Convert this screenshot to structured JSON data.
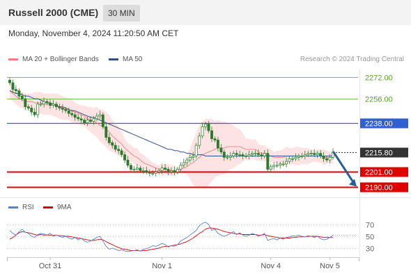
{
  "header": {
    "title": "Russell 2000 (CME)",
    "timeframe": "30 MIN",
    "datetime": "Monday, November 4, 2024 11:20:50 AM CET"
  },
  "legend": {
    "bollinger_label": "MA 20 + Bollinger Bands",
    "ma50_label": "MA 50",
    "credit": "Research © 2024 Trading Central",
    "rsi_label": "RSI",
    "rsi_ma_label": "9MA"
  },
  "colors": {
    "bollinger": "#f08080",
    "band_fill": "#fde3e3",
    "ma50": "#2d4e8a",
    "green_level": "#5aa02c",
    "blue_level": "#2f5fd0",
    "red_level": "#e00000",
    "current": "#333333",
    "candle": "#2c7a2c",
    "arrow": "#2a5c9a",
    "rsi": "#5b7fd6",
    "rsi_ma": "#e00000"
  },
  "chart_data": [
    {
      "type": "candlestick",
      "ylim": [
        2184,
        2278
      ],
      "levels": [
        {
          "value": 2272.0,
          "label": "2272.00",
          "kind": "green"
        },
        {
          "value": 2256.0,
          "label": "2256.00",
          "kind": "green"
        },
        {
          "value": 2238.0,
          "label": "2238.00",
          "kind": "blue"
        },
        {
          "value": 2215.8,
          "label": "2215.80",
          "kind": "current"
        },
        {
          "value": 2201.0,
          "label": "2201.00",
          "kind": "red"
        },
        {
          "value": 2190.0,
          "label": "2190.00",
          "kind": "red"
        }
      ],
      "close": [
        2268,
        2263,
        2262,
        2258,
        2256,
        2250,
        2249,
        2246,
        2244,
        2252,
        2252,
        2254,
        2253,
        2251,
        2252,
        2250,
        2249,
        2248,
        2247,
        2245,
        2244,
        2242,
        2241,
        2240,
        2238,
        2240,
        2239,
        2241,
        2243,
        2244,
        2235,
        2227,
        2223,
        2221,
        2218,
        2217,
        2214,
        2210,
        2206,
        2203,
        2203,
        2204,
        2202,
        2202,
        2201,
        2200,
        2200,
        2201,
        2202,
        2204,
        2203,
        2201,
        2202,
        2201,
        2203,
        2206,
        2208,
        2210,
        2212,
        2213,
        2221,
        2228,
        2235,
        2237,
        2232,
        2226,
        2225,
        2219,
        2216,
        2212,
        2212,
        2213,
        2215,
        2214,
        2214,
        2213,
        2213,
        2214,
        2215,
        2215,
        2214,
        2213,
        2215,
        2203,
        2205,
        2206,
        2206,
        2207,
        2207,
        2209,
        2211,
        2211,
        2212,
        2213,
        2213,
        2214,
        2215,
        2215,
        2214,
        2215,
        2213,
        2211,
        2210,
        2212,
        2215.8
      ],
      "upper_band": [
        2268,
        2266,
        2264,
        2262,
        2261,
        2260,
        2260,
        2260,
        2261,
        2261,
        2261,
        2260,
        2260,
        2260,
        2260,
        2260,
        2259,
        2258,
        2257,
        2256,
        2256,
        2253,
        2252,
        2251,
        2251,
        2250,
        2250,
        2249,
        2250,
        2248,
        2248,
        2246,
        2244,
        2240,
        2237,
        2235,
        2231,
        2226,
        2223,
        2221,
        2219,
        2219,
        2215,
        2214,
        2212,
        2210,
        2208,
        2207,
        2206,
        2208,
        2207,
        2207,
        2206,
        2206,
        2204,
        2206,
        2208,
        2212,
        2219,
        2225,
        2230,
        2236,
        2239,
        2241,
        2241,
        2241,
        2239,
        2240,
        2239,
        2239,
        2238,
        2237,
        2236,
        2234,
        2233,
        2230,
        2226,
        2226,
        2225,
        2226,
        2222,
        2221,
        2221,
        2219,
        2218,
        2216,
        2217,
        2217,
        2218,
        2220,
        2219,
        2219,
        2220,
        2220,
        2219,
        2219,
        2219,
        2218,
        2217,
        2218,
        2218,
        2218,
        2217,
        2216,
        2217
      ],
      "ma20": [
        2262,
        2260,
        2258,
        2256,
        2255,
        2254,
        2254,
        2254,
        2253,
        2253,
        2253,
        2252,
        2252,
        2252,
        2251,
        2251,
        2250,
        2249,
        2248,
        2248,
        2247,
        2246,
        2245,
        2244,
        2243,
        2241,
        2240,
        2239,
        2238,
        2236,
        2235,
        2233,
        2231,
        2228,
        2226,
        2224,
        2222,
        2219,
        2217,
        2215,
        2213,
        2212,
        2210,
        2208,
        2207,
        2206,
        2205,
        2204,
        2203,
        2203,
        2203,
        2203,
        2202,
        2202,
        2202,
        2203,
        2204,
        2205,
        2207,
        2208,
        2210,
        2212,
        2214,
        2215,
        2216,
        2217,
        2218,
        2219,
        2219,
        2219,
        2220,
        2220,
        2220,
        2220,
        2220,
        2219,
        2218,
        2218,
        2218,
        2218,
        2216,
        2215,
        2215,
        2214,
        2213,
        2212,
        2212,
        2212,
        2212,
        2213,
        2213,
        2213,
        2213,
        2213,
        2213,
        2213,
        2213,
        2213,
        2213,
        2213,
        2213,
        2212,
        2212,
        2212,
        2212
      ],
      "lower_band": [
        2256,
        2254,
        2252,
        2250,
        2249,
        2248,
        2248,
        2248,
        2246,
        2245,
        2245,
        2244,
        2244,
        2244,
        2243,
        2242,
        2241,
        2240,
        2240,
        2240,
        2238,
        2238,
        2237,
        2236,
        2236,
        2233,
        2231,
        2229,
        2227,
        2224,
        2222,
        2220,
        2217,
        2216,
        2215,
        2213,
        2212,
        2212,
        2211,
        2209,
        2207,
        2205,
        2205,
        2203,
        2202,
        2202,
        2201,
        2201,
        2200,
        2198,
        2199,
        2199,
        2198,
        2198,
        2200,
        2200,
        2200,
        2199,
        2196,
        2191,
        2190,
        2189,
        2189,
        2189,
        2191,
        2194,
        2197,
        2198,
        2199,
        2199,
        2202,
        2203,
        2204,
        2206,
        2207,
        2209,
        2210,
        2210,
        2211,
        2210,
        2210,
        2209,
        2209,
        2209,
        2208,
        2208,
        2207,
        2207,
        2206,
        2206,
        2207,
        2207,
        2206,
        2206,
        2207,
        2207,
        2207,
        2208,
        2209,
        2208,
        2208,
        2206,
        2207,
        2208,
        2207
      ],
      "ma50": [
        2262,
        2261,
        2260,
        2260,
        2259,
        2258,
        2258,
        2257,
        2256,
        2256,
        2255,
        2254,
        2253,
        2253,
        2252,
        2251,
        2250,
        2250,
        2249,
        2248,
        2247,
        2247,
        2246,
        2245,
        2244,
        2243,
        2242,
        2242,
        2241,
        2240,
        2239,
        2238,
        2237,
        2236,
        2235,
        2234,
        2233,
        2232,
        2231,
        2230,
        2229,
        2228,
        2227,
        2226,
        2225,
        2224,
        2223,
        2222,
        2221,
        2220,
        2219,
        2218,
        2218,
        2217,
        2217,
        2216,
        2216,
        2215,
        2215,
        2214,
        2214,
        2214,
        2214,
        2213,
        2213,
        2213,
        2213,
        2213,
        2213,
        2213,
        2213,
        2213,
        2213,
        2213,
        2213,
        2213,
        2213,
        2213,
        2213,
        2213,
        2213,
        2213,
        2213,
        2213,
        2213,
        2213,
        2213,
        2213,
        2213,
        2213,
        2213,
        2213,
        2213,
        2213,
        2213,
        2213,
        2213,
        2213,
        2213,
        2213,
        2213,
        2213,
        2213,
        2213,
        2213
      ],
      "projection": {
        "from": 2215.8,
        "to": 2190.0
      }
    },
    {
      "type": "line",
      "yticks": [
        70,
        50,
        30
      ],
      "ylim": [
        17,
        83
      ],
      "rsi": [
        60,
        55,
        52,
        58,
        62,
        57,
        55,
        50,
        48,
        53,
        55,
        54,
        52,
        55,
        50,
        52,
        50,
        48,
        50,
        47,
        45,
        48,
        44,
        47,
        42,
        40,
        42,
        45,
        48,
        50,
        42,
        33,
        28,
        30,
        28,
        26,
        27,
        25,
        24,
        25,
        26,
        27,
        25,
        28,
        29,
        31,
        34,
        33,
        35,
        38,
        36,
        32,
        34,
        33,
        36,
        42,
        45,
        48,
        52,
        56,
        60,
        68,
        72,
        74,
        70,
        60,
        62,
        55,
        52,
        50,
        52,
        55,
        58,
        53,
        56,
        52,
        50,
        52,
        55,
        53,
        50,
        52,
        55,
        43,
        45,
        46,
        44,
        47,
        45,
        48,
        49,
        51,
        50,
        52,
        50,
        49,
        51,
        50,
        48,
        50,
        46,
        44,
        45,
        48,
        52
      ],
      "ma9": [
        45,
        48,
        52,
        56,
        58,
        57,
        56,
        55,
        53,
        52,
        53,
        52,
        52,
        52,
        52,
        52,
        51,
        51,
        50,
        50,
        49,
        48,
        47,
        46,
        45,
        44,
        43,
        43,
        44,
        45,
        44,
        41,
        38,
        36,
        33,
        31,
        29,
        28,
        27,
        26,
        26,
        26,
        25,
        26,
        26,
        27,
        28,
        29,
        30,
        32,
        33,
        33,
        34,
        35,
        36,
        37,
        39,
        41,
        44,
        47,
        51,
        55,
        58,
        62,
        64,
        64,
        63,
        62,
        60,
        58,
        57,
        56,
        55,
        54,
        54,
        53,
        53,
        53,
        53,
        53,
        52,
        52,
        53,
        51,
        50,
        49,
        48,
        47,
        47,
        47,
        47,
        48,
        48,
        49,
        49,
        49,
        50,
        50,
        50,
        50,
        49,
        48,
        48,
        48,
        48
      ]
    }
  ],
  "xaxis": {
    "labels": [
      {
        "text": "Oct 31",
        "index": 13
      },
      {
        "text": "Nov 1",
        "index": 49
      },
      {
        "text": "Nov 4",
        "index": 84
      },
      {
        "text": "Nov 5",
        "index": 103
      }
    ]
  }
}
